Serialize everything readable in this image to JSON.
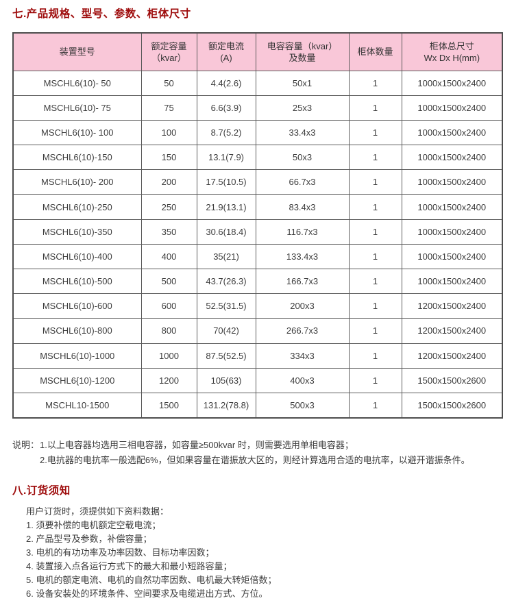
{
  "titles": {
    "section7": "七.产品规格、型号、参数、柜体尺寸",
    "section8": "八.订货须知"
  },
  "colors": {
    "title_red": "#9e0b0b",
    "header_pink": "#f9c7d8",
    "table_border": "#4d4d4d",
    "text": "#3c3c3c"
  },
  "spec_table": {
    "headers": [
      "装置型号",
      "额定容量\n（kvar）",
      "额定电流\n(A)",
      "电容容量（kvar）\n及数量",
      "柜体数量",
      "柜体总尺寸\nWx Dx H(mm)"
    ],
    "rows": [
      [
        "MSCHL6(10)- 50",
        "50",
        "4.4(2.6)",
        "50x1",
        "1",
        "1000x1500x2400"
      ],
      [
        "MSCHL6(10)- 75",
        "75",
        "6.6(3.9)",
        "25x3",
        "1",
        "1000x1500x2400"
      ],
      [
        "MSCHL6(10)- 100",
        "100",
        "8.7(5.2)",
        "33.4x3",
        "1",
        "1000x1500x2400"
      ],
      [
        "MSCHL6(10)-150",
        "150",
        "13.1(7.9)",
        "50x3",
        "1",
        "1000x1500x2400"
      ],
      [
        "MSCHL6(10)- 200",
        "200",
        "17.5(10.5)",
        "66.7x3",
        "1",
        "1000x1500x2400"
      ],
      [
        "MSCHL6(10)-250",
        "250",
        "21.9(13.1)",
        "83.4x3",
        "1",
        "1000x1500x2400"
      ],
      [
        "MSCHL6(10)-350",
        "350",
        "30.6(18.4)",
        "116.7x3",
        "1",
        "1000x1500x2400"
      ],
      [
        "MSCHL6(10)-400",
        "400",
        "35(21)",
        "133.4x3",
        "1",
        "1000x1500x2400"
      ],
      [
        "MSCHL6(10)-500",
        "500",
        "43.7(26.3)",
        "166.7x3",
        "1",
        "1000x1500x2400"
      ],
      [
        "MSCHL6(10)-600",
        "600",
        "52.5(31.5)",
        "200x3",
        "1",
        "1200x1500x2400"
      ],
      [
        "MSCHL6(10)-800",
        "800",
        "70(42)",
        "266.7x3",
        "1",
        "1200x1500x2400"
      ],
      [
        "MSCHL6(10)-1000",
        "1000",
        "87.5(52.5)",
        "334x3",
        "1",
        "1200x1500x2400"
      ],
      [
        "MSCHL6{10)-1200",
        "1200",
        "105(63)",
        "400x3",
        "1",
        "1500x1500x2600"
      ],
      [
        "MSCHL10-1500",
        "1500",
        "131.2(78.8)",
        "500x3",
        "1",
        "1500x1500x2600"
      ]
    ]
  },
  "notes": {
    "label": "说明：",
    "lines": [
      "1.以上电容器均选用三相电容器，如容量≥500kvar 时，则需要选用单相电容器；",
      "2.电抗器的电抗率一般选配6%，但如果容量在谐振放大区的，则经计算选用合适的电抗率，以避开谐振条件。"
    ]
  },
  "ordering": {
    "intro": "用户订货时，须提供如下资料数据：",
    "items": [
      "1.  须要补偿的电机额定空载电流；",
      "2.  产品型号及参数，补偿容量；",
      "3.  电机的有功功率及功率因数、目标功率因数；",
      "4.  装置接入点各运行方式下的最大和最小短路容量；",
      "5.  电机的额定电流、电机的自然功率因数、电机最大转矩倍数；",
      "6.  设备安装处的环境条件、空间要求及电缆进出方式、方位。"
    ]
  }
}
